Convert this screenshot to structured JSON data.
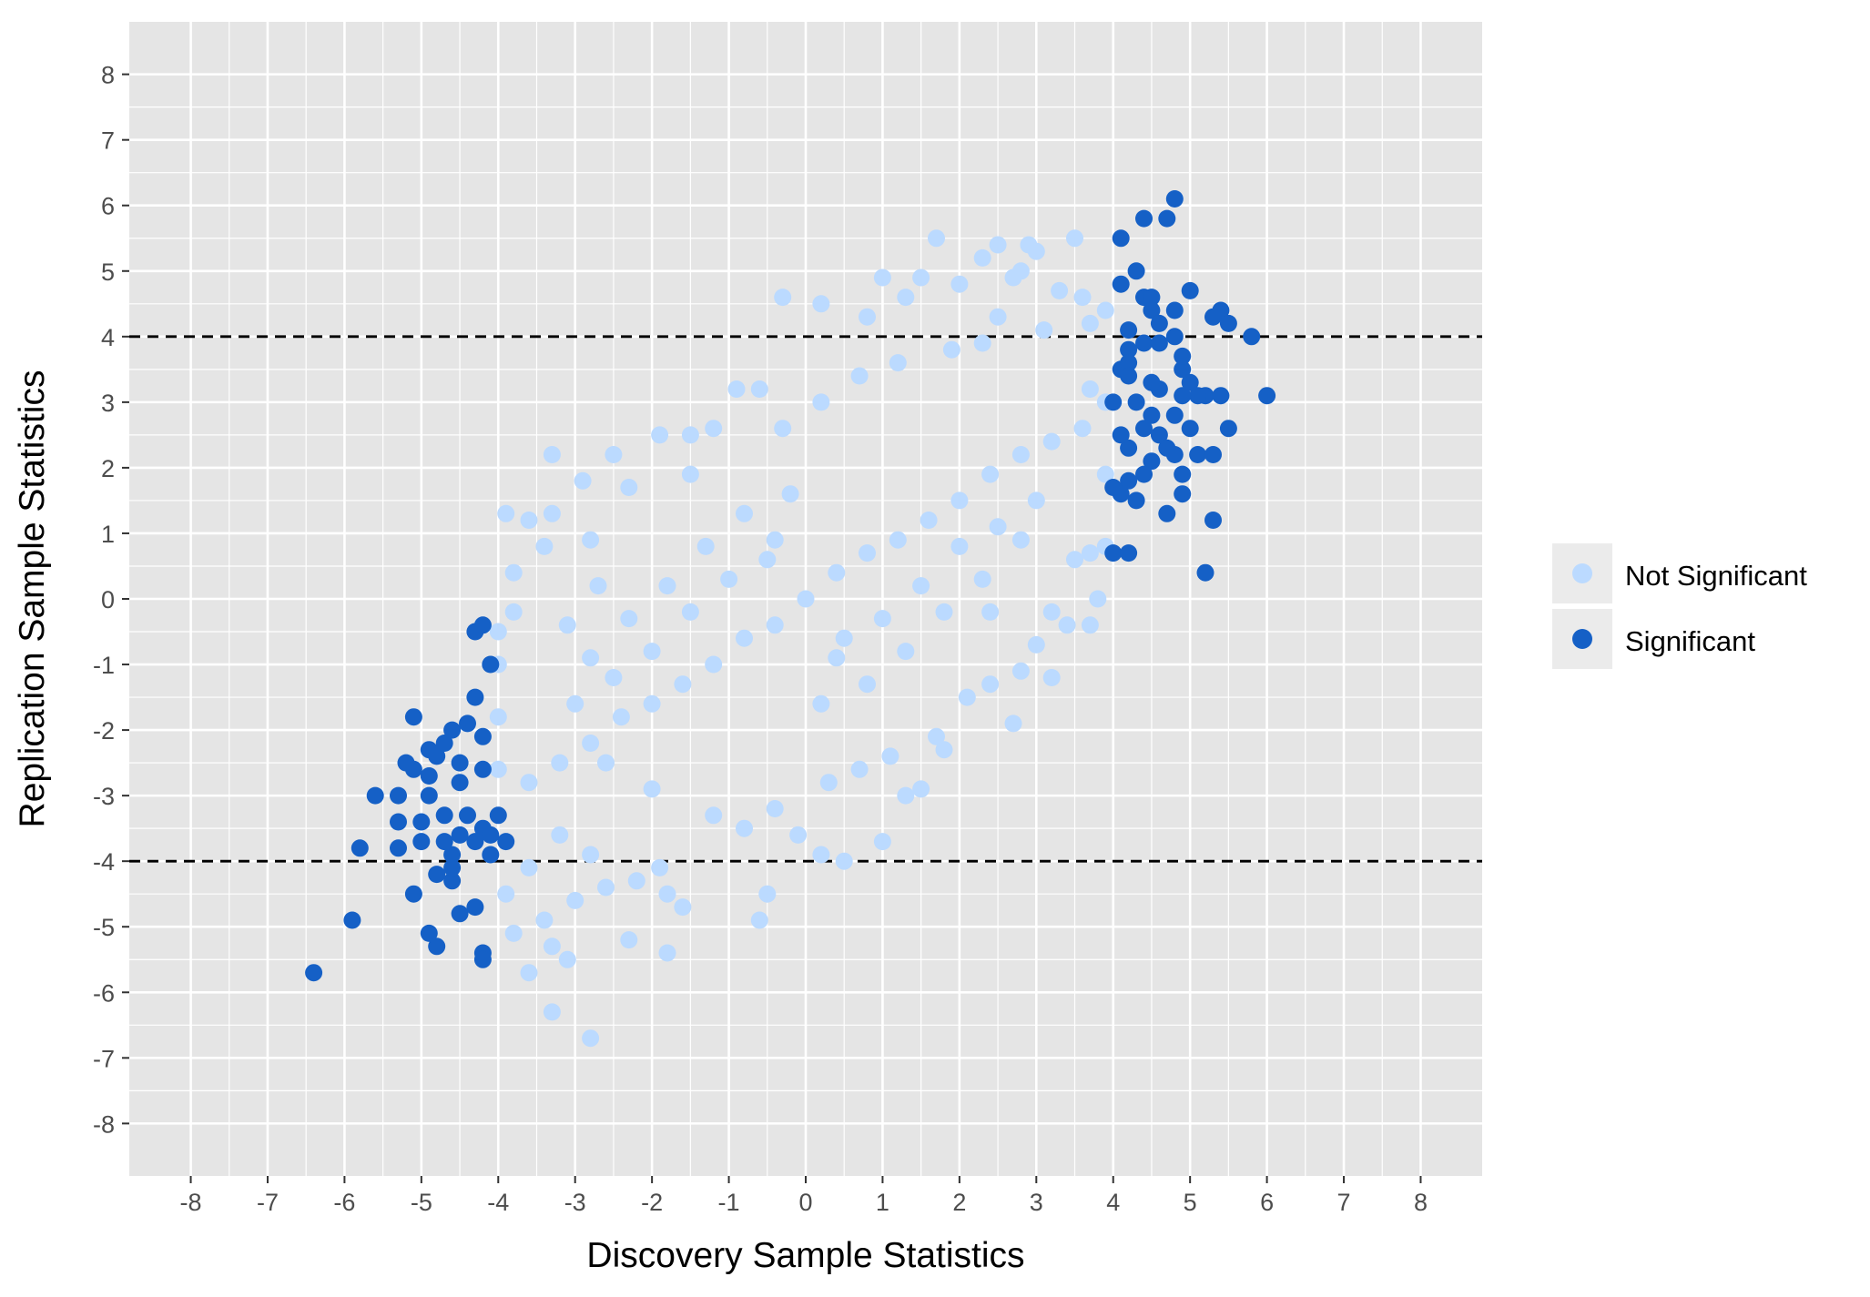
{
  "chart_data": {
    "type": "scatter",
    "xlabel": "Discovery Sample Statistics",
    "ylabel": "Replication Sample Statistics",
    "xlim": [
      -8.8,
      8.8
    ],
    "ylim": [
      -8.8,
      8.8
    ],
    "x_ticks": [
      -8,
      -7,
      -6,
      -5,
      -4,
      -3,
      -2,
      -1,
      0,
      1,
      2,
      3,
      4,
      5,
      6,
      7,
      8
    ],
    "y_ticks": [
      -8,
      -7,
      -6,
      -5,
      -4,
      -3,
      -2,
      -1,
      0,
      1,
      2,
      3,
      4,
      5,
      6,
      7,
      8
    ],
    "grid": true,
    "legend_position": "right",
    "reference_lines": [
      {
        "axis": "y",
        "value": 4,
        "style": "dashed",
        "color": "#000000"
      },
      {
        "axis": "y",
        "value": -4,
        "style": "dashed",
        "color": "#000000"
      }
    ],
    "colors": {
      "panel_background": "#e5e5e5",
      "grid": "#ffffff",
      "not_significant": "#bbdaff",
      "significant": "#1560c6"
    },
    "series": [
      {
        "name": "Not Significant",
        "color": "#bbdaff",
        "points": [
          [
            0,
            0
          ],
          [
            -0.4,
            -0.4
          ],
          [
            0.4,
            0.4
          ],
          [
            -0.8,
            -0.6
          ],
          [
            0.8,
            0.7
          ],
          [
            -1.2,
            -1
          ],
          [
            1.2,
            0.9
          ],
          [
            -1.6,
            -1.3
          ],
          [
            1.6,
            1.2
          ],
          [
            -2,
            -1.6
          ],
          [
            2,
            1.5
          ],
          [
            -2.4,
            -1.8
          ],
          [
            2.4,
            1.9
          ],
          [
            -2.8,
            -2.2
          ],
          [
            2.8,
            2.2
          ],
          [
            -3.2,
            -2.5
          ],
          [
            3.2,
            2.4
          ],
          [
            -3.6,
            -2.8
          ],
          [
            3.6,
            2.6
          ],
          [
            -0.5,
            0.6
          ],
          [
            0.5,
            -0.6
          ],
          [
            -1,
            0.3
          ],
          [
            1,
            -0.3
          ],
          [
            -1.5,
            -0.2
          ],
          [
            1.5,
            0.2
          ],
          [
            -2,
            -0.8
          ],
          [
            2,
            0.8
          ],
          [
            -2.5,
            -1.2
          ],
          [
            2.5,
            1.1
          ],
          [
            -3,
            -1.6
          ],
          [
            3,
            1.5
          ],
          [
            -0.2,
            1.6
          ],
          [
            0.2,
            -1.6
          ],
          [
            -0.8,
            1.3
          ],
          [
            0.8,
            -1.3
          ],
          [
            -1.3,
            0.8
          ],
          [
            1.3,
            -0.8
          ],
          [
            -1.8,
            0.2
          ],
          [
            1.8,
            -0.2
          ],
          [
            -2.3,
            -0.3
          ],
          [
            2.3,
            0.3
          ],
          [
            -2.8,
            -0.9
          ],
          [
            2.8,
            0.9
          ],
          [
            -3.2,
            -3.6
          ],
          [
            -2.8,
            -3.9
          ],
          [
            -2.6,
            -4.4
          ],
          [
            -3,
            -4.6
          ],
          [
            -3.4,
            -4.9
          ],
          [
            -3.6,
            -4.1
          ],
          [
            -3.9,
            -4.5
          ],
          [
            -2.2,
            -4.3
          ],
          [
            -1.8,
            -4.5
          ],
          [
            -1.9,
            -4.1
          ],
          [
            -3.3,
            -5.3
          ],
          [
            -3.8,
            -5.1
          ],
          [
            -3.6,
            -5.7
          ],
          [
            -3.1,
            -5.5
          ],
          [
            -2.3,
            -5.2
          ],
          [
            -1.8,
            -5.4
          ],
          [
            -1.6,
            -4.7
          ],
          [
            -0.6,
            -4.9
          ],
          [
            -0.5,
            -4.5
          ],
          [
            -0.1,
            -3.6
          ],
          [
            0.2,
            -3.9
          ],
          [
            0.5,
            -4
          ],
          [
            1,
            -3.7
          ],
          [
            -3.3,
            -6.3
          ],
          [
            -2.8,
            -6.7
          ],
          [
            3.5,
            5.5
          ],
          [
            3,
            5.3
          ],
          [
            2.9,
            5.4
          ],
          [
            2.5,
            5.4
          ],
          [
            2.3,
            5.2
          ],
          [
            2.8,
            5
          ],
          [
            3.3,
            4.7
          ],
          [
            3.6,
            4.6
          ],
          [
            1.7,
            5.5
          ],
          [
            1.5,
            4.9
          ],
          [
            1,
            4.9
          ],
          [
            -0.3,
            4.6
          ],
          [
            0.2,
            4.5
          ],
          [
            0.8,
            4.3
          ],
          [
            1.3,
            4.6
          ],
          [
            2,
            4.8
          ],
          [
            2.7,
            4.9
          ],
          [
            3.9,
            4.4
          ],
          [
            3.7,
            4.2
          ],
          [
            3.1,
            4.1
          ],
          [
            2.5,
            4.3
          ],
          [
            -3.3,
            2.2
          ],
          [
            -2.9,
            1.8
          ],
          [
            -2.5,
            2.2
          ],
          [
            -2.3,
            1.7
          ],
          [
            -3.9,
            1.3
          ],
          [
            -3.6,
            1.2
          ],
          [
            -3.3,
            1.3
          ],
          [
            -4,
            -0.5
          ],
          [
            -4,
            -1
          ],
          [
            -4,
            -1.8
          ],
          [
            -4,
            -2.6
          ],
          [
            -3.8,
            0.4
          ],
          [
            -3.8,
            -0.2
          ],
          [
            -3.4,
            0.8
          ],
          [
            -2.8,
            0.9
          ],
          [
            -1.9,
            2.5
          ],
          [
            -1.5,
            2.5
          ],
          [
            -0.9,
            3.2
          ],
          [
            -0.6,
            3.2
          ],
          [
            -1.2,
            2.6
          ],
          [
            3.7,
            0.7
          ],
          [
            3.9,
            0.8
          ],
          [
            3.5,
            0.6
          ],
          [
            3.2,
            -0.2
          ],
          [
            3.7,
            -0.4
          ],
          [
            3.4,
            -0.4
          ],
          [
            3.2,
            -1.2
          ],
          [
            2.7,
            -1.9
          ],
          [
            2.8,
            -1.1
          ],
          [
            2.4,
            -1.3
          ],
          [
            2.1,
            -1.5
          ],
          [
            1.8,
            -2.3
          ],
          [
            1.5,
            -2.9
          ],
          [
            1.3,
            -3
          ],
          [
            1.7,
            -2.1
          ],
          [
            2.4,
            -0.2
          ],
          [
            3.8,
            0
          ],
          [
            3,
            -0.7
          ],
          [
            3.9,
            1.9
          ],
          [
            3.9,
            3
          ],
          [
            3.7,
            3.2
          ],
          [
            -1.2,
            -3.3
          ],
          [
            -0.4,
            -3.2
          ],
          [
            -0.8,
            -3.5
          ],
          [
            0.3,
            -2.8
          ],
          [
            0.7,
            -2.6
          ],
          [
            1.1,
            -2.4
          ],
          [
            -2,
            -2.9
          ],
          [
            -2.6,
            -2.5
          ],
          [
            -3.1,
            -0.4
          ],
          [
            -2.7,
            0.2
          ],
          [
            -1.5,
            1.9
          ],
          [
            -0.3,
            2.6
          ],
          [
            0.2,
            3
          ],
          [
            0.7,
            3.4
          ],
          [
            1.2,
            3.6
          ],
          [
            1.9,
            3.8
          ],
          [
            2.3,
            3.9
          ],
          [
            -0.4,
            0.9
          ],
          [
            0.4,
            -0.9
          ]
        ]
      },
      {
        "name": "Significant",
        "color": "#1560c6",
        "points": [
          [
            -6.4,
            -5.7
          ],
          [
            -5.9,
            -4.9
          ],
          [
            -5.8,
            -3.8
          ],
          [
            -5.6,
            -3
          ],
          [
            -5.1,
            -4.5
          ],
          [
            -5,
            -3.7
          ],
          [
            -4.9,
            -5.1
          ],
          [
            -4.8,
            -5.3
          ],
          [
            -5.1,
            -1.8
          ],
          [
            -5.3,
            -3
          ],
          [
            -5.3,
            -3.4
          ],
          [
            -5.3,
            -3.8
          ],
          [
            -5,
            -3.4
          ],
          [
            -4.9,
            -2.3
          ],
          [
            -4.8,
            -2.4
          ],
          [
            -4.7,
            -2.2
          ],
          [
            -4.6,
            -2
          ],
          [
            -4.5,
            -2.5
          ],
          [
            -4.4,
            -1.9
          ],
          [
            -4.3,
            -1.5
          ],
          [
            -4.2,
            -2.1
          ],
          [
            -4.2,
            -2.6
          ],
          [
            -4.5,
            -2.8
          ],
          [
            -4.7,
            -3.3
          ],
          [
            -4.4,
            -3.3
          ],
          [
            -4.2,
            -3.5
          ],
          [
            -4.1,
            -3.6
          ],
          [
            -4.3,
            -3.7
          ],
          [
            -4.6,
            -3.9
          ],
          [
            -4.8,
            -4.2
          ],
          [
            -4.6,
            -4.3
          ],
          [
            -4.3,
            -4.7
          ],
          [
            -4.2,
            -5.4
          ],
          [
            -4.2,
            -5.5
          ],
          [
            -4.5,
            -4.8
          ],
          [
            -4.6,
            -4.1
          ],
          [
            -4.7,
            -3.7
          ],
          [
            -4,
            -3.3
          ],
          [
            -3.9,
            -3.7
          ],
          [
            -4.1,
            -3.9
          ],
          [
            -4.3,
            -0.5
          ],
          [
            -4.2,
            -0.4
          ],
          [
            -4.1,
            -1
          ],
          [
            -4.9,
            -2.7
          ],
          [
            -5.1,
            -2.6
          ],
          [
            -4.9,
            -3
          ],
          [
            -5.2,
            -2.5
          ],
          [
            -4.5,
            -3.6
          ],
          [
            4.8,
            6.1
          ],
          [
            4.4,
            5.8
          ],
          [
            4.7,
            5.8
          ],
          [
            4.1,
            5.5
          ],
          [
            4.3,
            5
          ],
          [
            4.1,
            4.8
          ],
          [
            5,
            4.7
          ],
          [
            4.4,
            4.6
          ],
          [
            4.5,
            4.6
          ],
          [
            4.5,
            4.4
          ],
          [
            4.8,
            4.4
          ],
          [
            4.6,
            4.2
          ],
          [
            5.4,
            4.4
          ],
          [
            5.5,
            4.2
          ],
          [
            5.3,
            4.3
          ],
          [
            5.8,
            4
          ],
          [
            4.2,
            4.1
          ],
          [
            4.2,
            3.8
          ],
          [
            4.4,
            3.9
          ],
          [
            4.6,
            3.9
          ],
          [
            4.8,
            4
          ],
          [
            4.9,
            3.5
          ],
          [
            5,
            3.3
          ],
          [
            5.2,
            3.1
          ],
          [
            5.4,
            3.1
          ],
          [
            5.1,
            3.1
          ],
          [
            4.9,
            3.1
          ],
          [
            4.6,
            3.2
          ],
          [
            4.3,
            3
          ],
          [
            4.5,
            2.8
          ],
          [
            4.6,
            2.5
          ],
          [
            4.4,
            2.6
          ],
          [
            4.8,
            2.8
          ],
          [
            5,
            2.6
          ],
          [
            5.1,
            2.2
          ],
          [
            5.3,
            2.2
          ],
          [
            5.5,
            2.6
          ],
          [
            4.8,
            2.2
          ],
          [
            4.5,
            2.1
          ],
          [
            4.4,
            1.9
          ],
          [
            4.2,
            1.8
          ],
          [
            4.2,
            2.3
          ],
          [
            4.1,
            2.5
          ],
          [
            4.1,
            3.5
          ],
          [
            4,
            3
          ],
          [
            4.2,
            3.6
          ],
          [
            4.7,
            2.3
          ],
          [
            4.9,
            1.9
          ],
          [
            4.9,
            1.6
          ],
          [
            4.3,
            1.5
          ],
          [
            4.7,
            1.3
          ],
          [
            4.1,
            1.6
          ],
          [
            4,
            1.7
          ],
          [
            4,
            0.7
          ],
          [
            4.2,
            0.7
          ],
          [
            5.2,
            0.4
          ],
          [
            5.3,
            1.2
          ],
          [
            6,
            3.1
          ],
          [
            4.2,
            3.4
          ],
          [
            4.9,
            3.7
          ],
          [
            4.5,
            3.3
          ]
        ]
      }
    ]
  }
}
